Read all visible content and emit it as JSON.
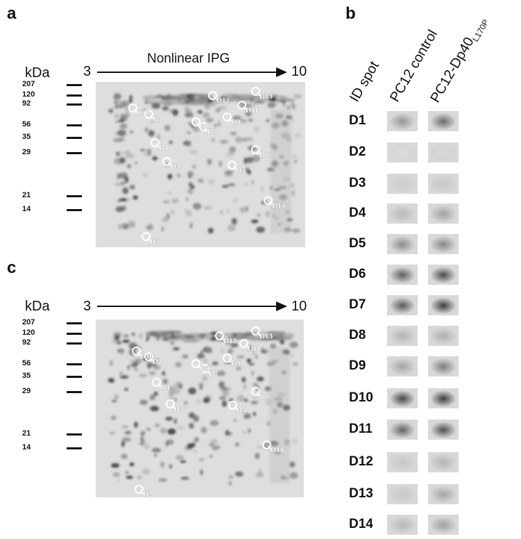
{
  "panels": {
    "a": "a",
    "b": "b",
    "c": "c"
  },
  "gel_axis": {
    "unit": "kDa",
    "ipg_label": "Nonlinear IPG",
    "ipg_start": "3",
    "ipg_end": "10",
    "markers": [
      "207",
      "120",
      "92",
      "56",
      "35",
      "29",
      "21",
      "14"
    ]
  },
  "spot_labels": [
    "D1",
    "D2",
    "D3",
    "D4",
    "D5",
    "D6",
    "D7",
    "D8",
    "D9",
    "D10",
    "D11",
    "D12",
    "D13",
    "D14"
  ],
  "table": {
    "col_id": "ID spot",
    "col_control": "PC12 control",
    "col_mutant": "PC12-Dp40",
    "col_mutant_sub": "L170P",
    "rows": [
      "D1",
      "D2",
      "D3",
      "D4",
      "D5",
      "D6",
      "D7",
      "D8",
      "D9",
      "D10",
      "D11",
      "D12",
      "D13",
      "D14"
    ]
  }
}
